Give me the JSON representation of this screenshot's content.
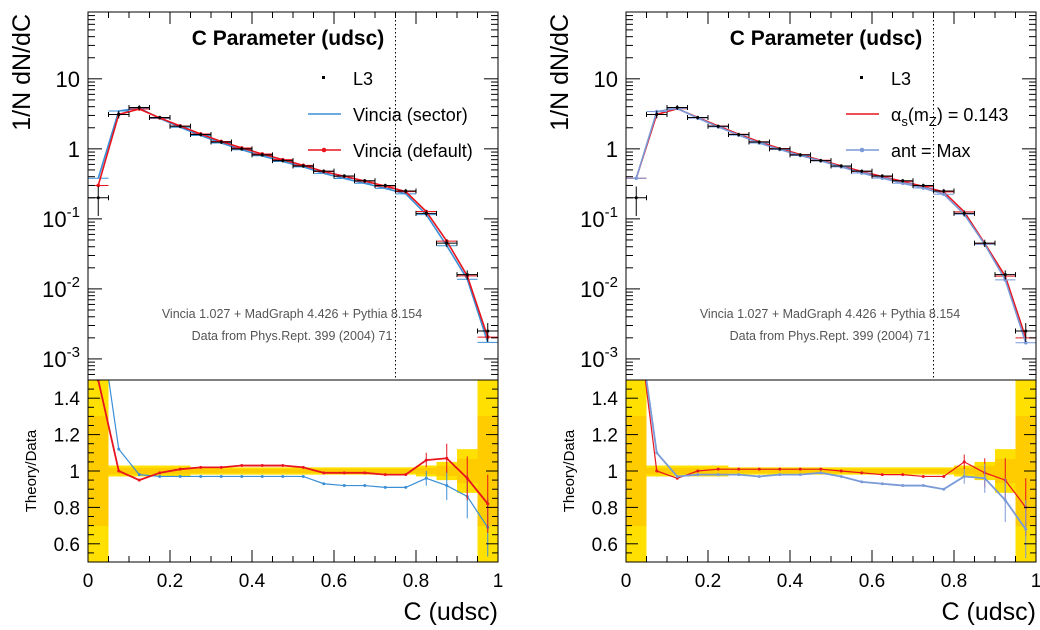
{
  "chart_data": [
    {
      "type": "line",
      "title": "C Parameter (udsc)",
      "xlabel": "C (udsc)",
      "ylabel": "1/N dN/dC",
      "ratio_ylabel": "Theory/Data",
      "yscale": "log",
      "xlim": [
        0,
        1
      ],
      "ylim": [
        0.0005,
        90
      ],
      "ratio_ylim": [
        0.5,
        1.5
      ],
      "x_ticks": [
        "0",
        "0.2",
        "0.4",
        "0.6",
        "0.8",
        "1"
      ],
      "y_ticks": [
        "10^-3",
        "10^-2",
        "10^-1",
        "1",
        "10"
      ],
      "ratio_ticks": [
        "0.6",
        "0.8",
        "1",
        "1.2",
        "1.4"
      ],
      "cut_line_x": 0.75,
      "legend_position": "top-right",
      "annotations": [
        "Vincia 1.027 + MadGraph 4.426 + Pythia 8.154",
        "Data from Phys.Rept. 399 (2004) 71"
      ],
      "x": [
        0.025,
        0.075,
        0.125,
        0.175,
        0.225,
        0.275,
        0.325,
        0.375,
        0.425,
        0.475,
        0.525,
        0.575,
        0.625,
        0.675,
        0.725,
        0.775,
        0.825,
        0.875,
        0.925,
        0.975
      ],
      "data": {
        "name": "L3",
        "values": [
          0.2,
          3.1,
          3.9,
          2.8,
          2.1,
          1.6,
          1.25,
          1.0,
          0.82,
          0.68,
          0.57,
          0.48,
          0.41,
          0.35,
          0.3,
          0.25,
          0.12,
          0.045,
          0.016,
          0.0025
        ],
        "rel_err": [
          0.45,
          0.12,
          0.08,
          0.06,
          0.06,
          0.06,
          0.06,
          0.06,
          0.06,
          0.06,
          0.06,
          0.06,
          0.06,
          0.06,
          0.06,
          0.07,
          0.1,
          0.12,
          0.15,
          0.3
        ]
      },
      "series": [
        {
          "name": "Vincia (sector)",
          "color": "#3a8fd6",
          "marker": "none",
          "ratio": [
            1.9,
            1.12,
            0.98,
            0.97,
            0.97,
            0.97,
            0.97,
            0.97,
            0.97,
            0.97,
            0.97,
            0.93,
            0.92,
            0.92,
            0.91,
            0.91,
            0.96,
            0.92,
            0.86,
            0.69
          ]
        },
        {
          "name": "Vincia (default)",
          "color": "#e8141e",
          "marker": "dot",
          "ratio": [
            1.5,
            1.0,
            0.95,
            0.99,
            1.01,
            1.02,
            1.02,
            1.03,
            1.03,
            1.03,
            1.02,
            0.99,
            0.99,
            0.99,
            0.98,
            0.98,
            1.06,
            1.07,
            0.96,
            0.82
          ]
        }
      ],
      "band": {
        "inner_color": "#ffe000",
        "outer_color": "#ffcc00",
        "halfwidth": [
          0.55,
          0.03,
          0.03,
          0.03,
          0.03,
          0.02,
          0.02,
          0.02,
          0.02,
          0.02,
          0.02,
          0.02,
          0.02,
          0.02,
          0.02,
          0.02,
          0.03,
          0.05,
          0.12,
          0.55
        ]
      }
    },
    {
      "type": "line",
      "title": "C Parameter (udsc)",
      "xlabel": "C (udsc)",
      "ylabel": "1/N dN/dC",
      "ratio_ylabel": "Theory/Data",
      "yscale": "log",
      "xlim": [
        0,
        1
      ],
      "ylim": [
        0.0005,
        90
      ],
      "ratio_ylim": [
        0.5,
        1.5
      ],
      "x_ticks": [
        "0",
        "0.2",
        "0.4",
        "0.6",
        "0.8",
        "1"
      ],
      "y_ticks": [
        "10^-3",
        "10^-2",
        "10^-1",
        "1",
        "10"
      ],
      "ratio_ticks": [
        "0.6",
        "0.8",
        "1",
        "1.2",
        "1.4"
      ],
      "cut_line_x": 0.75,
      "legend_position": "top-right",
      "annotations": [
        "Vincia 1.027 + MadGraph 4.426 + Pythia 8.154",
        "Data from Phys.Rept. 399 (2004) 71"
      ],
      "x": [
        0.025,
        0.075,
        0.125,
        0.175,
        0.225,
        0.275,
        0.325,
        0.375,
        0.425,
        0.475,
        0.525,
        0.575,
        0.625,
        0.675,
        0.725,
        0.775,
        0.825,
        0.875,
        0.925,
        0.975
      ],
      "data": {
        "name": "L3",
        "values": [
          0.2,
          3.1,
          3.9,
          2.8,
          2.1,
          1.6,
          1.25,
          1.0,
          0.82,
          0.68,
          0.57,
          0.48,
          0.41,
          0.35,
          0.3,
          0.25,
          0.12,
          0.045,
          0.016,
          0.0025
        ],
        "rel_err": [
          0.45,
          0.12,
          0.08,
          0.06,
          0.06,
          0.06,
          0.06,
          0.06,
          0.06,
          0.06,
          0.06,
          0.06,
          0.06,
          0.06,
          0.06,
          0.07,
          0.1,
          0.12,
          0.15,
          0.3
        ]
      },
      "series": [
        {
          "name": "α_s(m_Z) = 0.143",
          "name_main": "α",
          "name_sub1": "s",
          "name_mid": "(m",
          "name_sub2": "Z",
          "name_tail": ") = 0.143",
          "color": "#e8141e",
          "marker": "none",
          "ratio": [
            1.9,
            1.0,
            0.96,
            1.0,
            1.01,
            1.01,
            1.01,
            1.01,
            1.01,
            1.01,
            1.0,
            0.99,
            0.98,
            0.98,
            0.97,
            0.97,
            1.05,
            0.99,
            0.95,
            0.8
          ]
        },
        {
          "name": "ant = Max",
          "color": "#7a9ad8",
          "marker": "dot",
          "ratio": [
            1.9,
            1.1,
            0.97,
            0.98,
            0.98,
            0.98,
            0.97,
            0.98,
            0.98,
            0.99,
            0.97,
            0.94,
            0.93,
            0.92,
            0.92,
            0.9,
            0.97,
            0.96,
            0.84,
            0.68
          ]
        }
      ],
      "band": {
        "inner_color": "#ffe000",
        "outer_color": "#ffcc00",
        "halfwidth": [
          0.55,
          0.03,
          0.03,
          0.03,
          0.03,
          0.02,
          0.02,
          0.02,
          0.02,
          0.02,
          0.02,
          0.02,
          0.02,
          0.02,
          0.02,
          0.02,
          0.03,
          0.05,
          0.12,
          0.55
        ]
      }
    }
  ]
}
